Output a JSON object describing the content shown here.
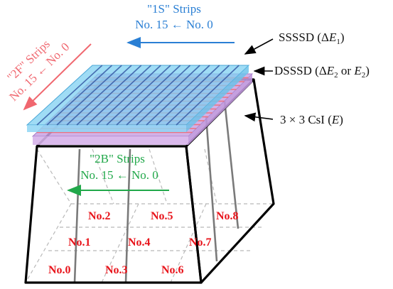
{
  "strips_1s": {
    "title": "\"1S\" Strips",
    "range": "No. 15 ← No. 0",
    "color": "#2a7fd4"
  },
  "strips_2f": {
    "title": "\"2F\" Strips",
    "range": "No. 15 ← No. 0",
    "color": "#f0676f"
  },
  "strips_2b": {
    "title": "\"2B\" Strips",
    "range": "No. 15 ← No. 0",
    "color": "#21a84a"
  },
  "detectors": {
    "ssssd": {
      "name": "SSSSD",
      "delta": "Δ",
      "var": "E",
      "sub": "1",
      "color": "#7fd0f2"
    },
    "dsssd": {
      "name": "DSSSD",
      "delta": "Δ",
      "var": "E",
      "sub": "2",
      "or_text": "or",
      "var2": "E",
      "sub2": "2",
      "color": "#c9a3e4"
    },
    "csi": {
      "name": "3 × 3 CsI",
      "var": "E"
    }
  },
  "crystals": [
    "No.0",
    "No.1",
    "No.2",
    "No.3",
    "No.4",
    "No.5",
    "No.6",
    "No.7",
    "No.8"
  ],
  "crystal_color": "#e8141b"
}
